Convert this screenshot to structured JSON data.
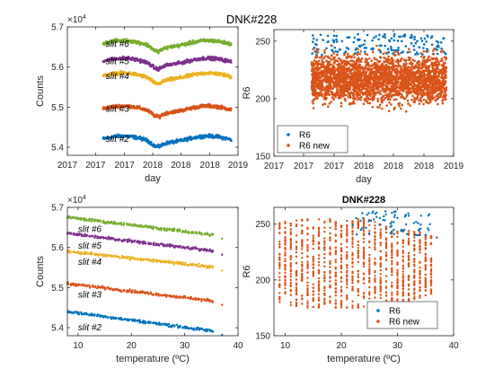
{
  "figure": {
    "title": "DNK#228",
    "colors": {
      "slit2": "#0072bd",
      "slit3": "#d95319",
      "slit4": "#edb120",
      "slit5": "#7e2f8e",
      "slit6": "#77ac30",
      "R6": "#0072bd",
      "R6_new": "#d95319",
      "axis": "#262626"
    }
  },
  "chart_data": [
    {
      "id": "tl",
      "type": "scatter",
      "title": "",
      "xlabel": "day",
      "ylabel": "Counts",
      "multiplier": "×10",
      "multiplier_exp": "4",
      "xlim": [
        2017.0,
        2019.0
      ],
      "ylim": [
        5.38,
        5.7
      ],
      "xticks": [
        2017.0,
        2017.33,
        2017.67,
        2018.0,
        2018.33,
        2018.67,
        2019.0
      ],
      "xtick_labels": [
        "2017",
        "2017",
        "2017",
        "2018",
        "2018",
        "2018",
        "2019"
      ],
      "yticks": [
        5.4,
        5.5,
        5.6,
        5.7
      ],
      "ytick_labels": [
        "5.4",
        "5.5",
        "5.6",
        "5.7"
      ],
      "x_range": [
        2017.42,
        2018.92
      ],
      "series": [
        {
          "name": "slit #2",
          "color_key": "slit2",
          "base": 5.42
        },
        {
          "name": "slit #3",
          "color_key": "slit3",
          "base": 5.495
        },
        {
          "name": "slit #4",
          "color_key": "slit4",
          "base": 5.577
        },
        {
          "name": "slit #5",
          "color_key": "slit5",
          "base": 5.614
        },
        {
          "name": "slit #6",
          "color_key": "slit6",
          "base": 5.658
        }
      ]
    },
    {
      "id": "tr",
      "type": "scatter",
      "title": "DNK#228",
      "xlabel": "day",
      "ylabel": "R6",
      "xlim": [
        2017.0,
        2019.0
      ],
      "ylim": [
        150,
        260
      ],
      "xticks": [
        2017.0,
        2017.33,
        2017.67,
        2018.0,
        2018.33,
        2018.67,
        2019.0
      ],
      "xtick_labels": [
        "2017",
        "2017",
        "2017",
        "2018",
        "2018",
        "2018",
        "2019"
      ],
      "yticks": [
        150,
        200,
        250
      ],
      "ytick_labels": [
        "150",
        "200",
        "250"
      ],
      "legend": {
        "location": "bottom-left",
        "entries": [
          "R6",
          "R6 new"
        ]
      },
      "series": [
        {
          "name": "R6",
          "color_key": "R6",
          "x_range": [
            2017.42,
            2018.92
          ],
          "y_center": 217,
          "y_spread": 30
        },
        {
          "name": "R6 new",
          "color_key": "R6_new",
          "x_range": [
            2017.42,
            2018.92
          ],
          "y_center": 217,
          "y_spread": 30
        }
      ]
    },
    {
      "id": "bl",
      "type": "scatter",
      "title": "",
      "xlabel": "temperature (ºC)",
      "ylabel": "Counts",
      "multiplier": "×10",
      "multiplier_exp": "4",
      "xlim": [
        8,
        40
      ],
      "ylim": [
        5.38,
        5.7
      ],
      "xticks": [
        10,
        20,
        30,
        40
      ],
      "xtick_labels": [
        "10",
        "20",
        "30",
        "40"
      ],
      "yticks": [
        5.4,
        5.5,
        5.6,
        5.7
      ],
      "ytick_labels": [
        "5.4",
        "5.5",
        "5.6",
        "5.7"
      ],
      "series": [
        {
          "name": "slit #2",
          "color_key": "slit2",
          "start": 5.44,
          "end": 5.39
        },
        {
          "name": "slit #3",
          "color_key": "slit3",
          "start": 5.51,
          "end": 5.465
        },
        {
          "name": "slit #4",
          "color_key": "slit4",
          "start": 5.59,
          "end": 5.55
        },
        {
          "name": "slit #5",
          "color_key": "slit5",
          "start": 5.635,
          "end": 5.59
        },
        {
          "name": "slit #6",
          "color_key": "slit6",
          "start": 5.675,
          "end": 5.63
        }
      ]
    },
    {
      "id": "br",
      "type": "scatter",
      "title": "DNK#228",
      "xlabel": "temperature (ºC)",
      "ylabel": "R6",
      "xlim": [
        8,
        40
      ],
      "ylim": [
        150,
        265
      ],
      "xticks": [
        10,
        20,
        30,
        40
      ],
      "xtick_labels": [
        "10",
        "20",
        "30",
        "40"
      ],
      "yticks": [
        150,
        200,
        250
      ],
      "ytick_labels": [
        "150",
        "200",
        "250"
      ],
      "legend": {
        "location": "bottom-right",
        "entries": [
          "R6",
          "R6 new"
        ]
      },
      "series": [
        {
          "name": "R6",
          "color_key": "R6",
          "x_range": [
            9,
            37
          ]
        },
        {
          "name": "R6 new",
          "color_key": "R6_new",
          "x_range": [
            9,
            36
          ]
        }
      ]
    }
  ]
}
